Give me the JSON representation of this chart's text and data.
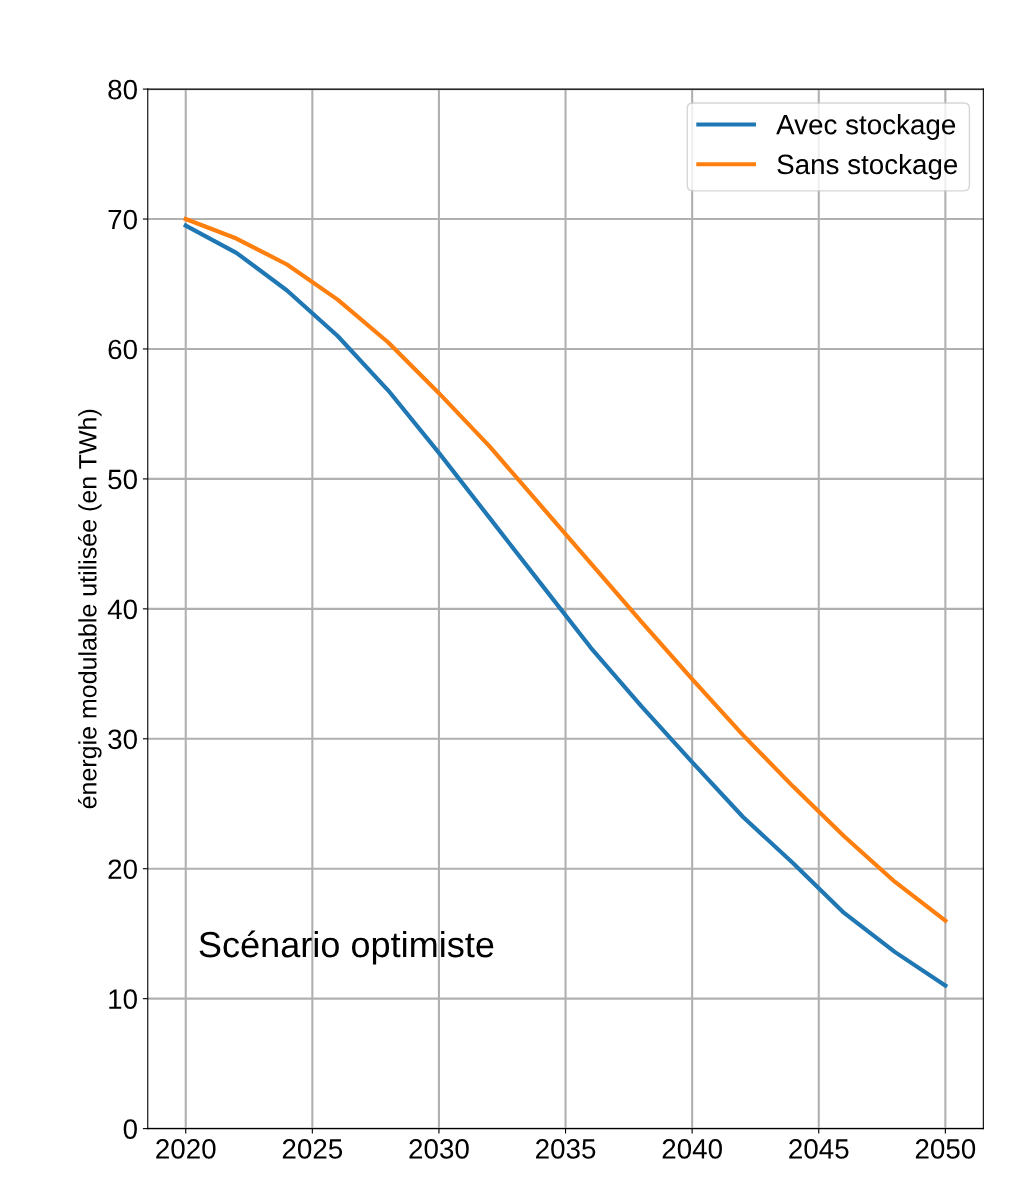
{
  "chart_data": {
    "type": "line",
    "x": [
      2020,
      2022,
      2024,
      2026,
      2028,
      2030,
      2032,
      2034,
      2036,
      2038,
      2040,
      2042,
      2044,
      2046,
      2048,
      2050
    ],
    "series": [
      {
        "name": "Avec stockage",
        "color": "#1f77b4",
        "values": [
          69.5,
          67.4,
          64.5,
          61,
          56.8,
          52,
          47,
          42,
          37,
          32.5,
          28.2,
          24,
          20.4,
          16.6,
          13.6,
          11
        ]
      },
      {
        "name": "Sans stockage",
        "color": "#ff7f0e",
        "values": [
          70,
          68.5,
          66.5,
          63.8,
          60.5,
          56.6,
          52.5,
          48,
          43.5,
          39,
          34.6,
          30.3,
          26.3,
          22.5,
          19,
          16
        ]
      }
    ],
    "ylabel": "énergie modulable utilisée (en TWh)",
    "annotations": [
      "Scénario optimiste"
    ],
    "xlim": [
      2018.5,
      2051.5
    ],
    "xticks": [
      2020,
      2025,
      2030,
      2035,
      2040,
      2045,
      2050
    ],
    "ylim": [
      0,
      80
    ],
    "yticks": [
      0,
      10,
      20,
      30,
      40,
      50,
      60,
      70,
      80
    ],
    "grid": true,
    "legend": "top right",
    "marker": "none",
    "line_style": "solid"
  }
}
